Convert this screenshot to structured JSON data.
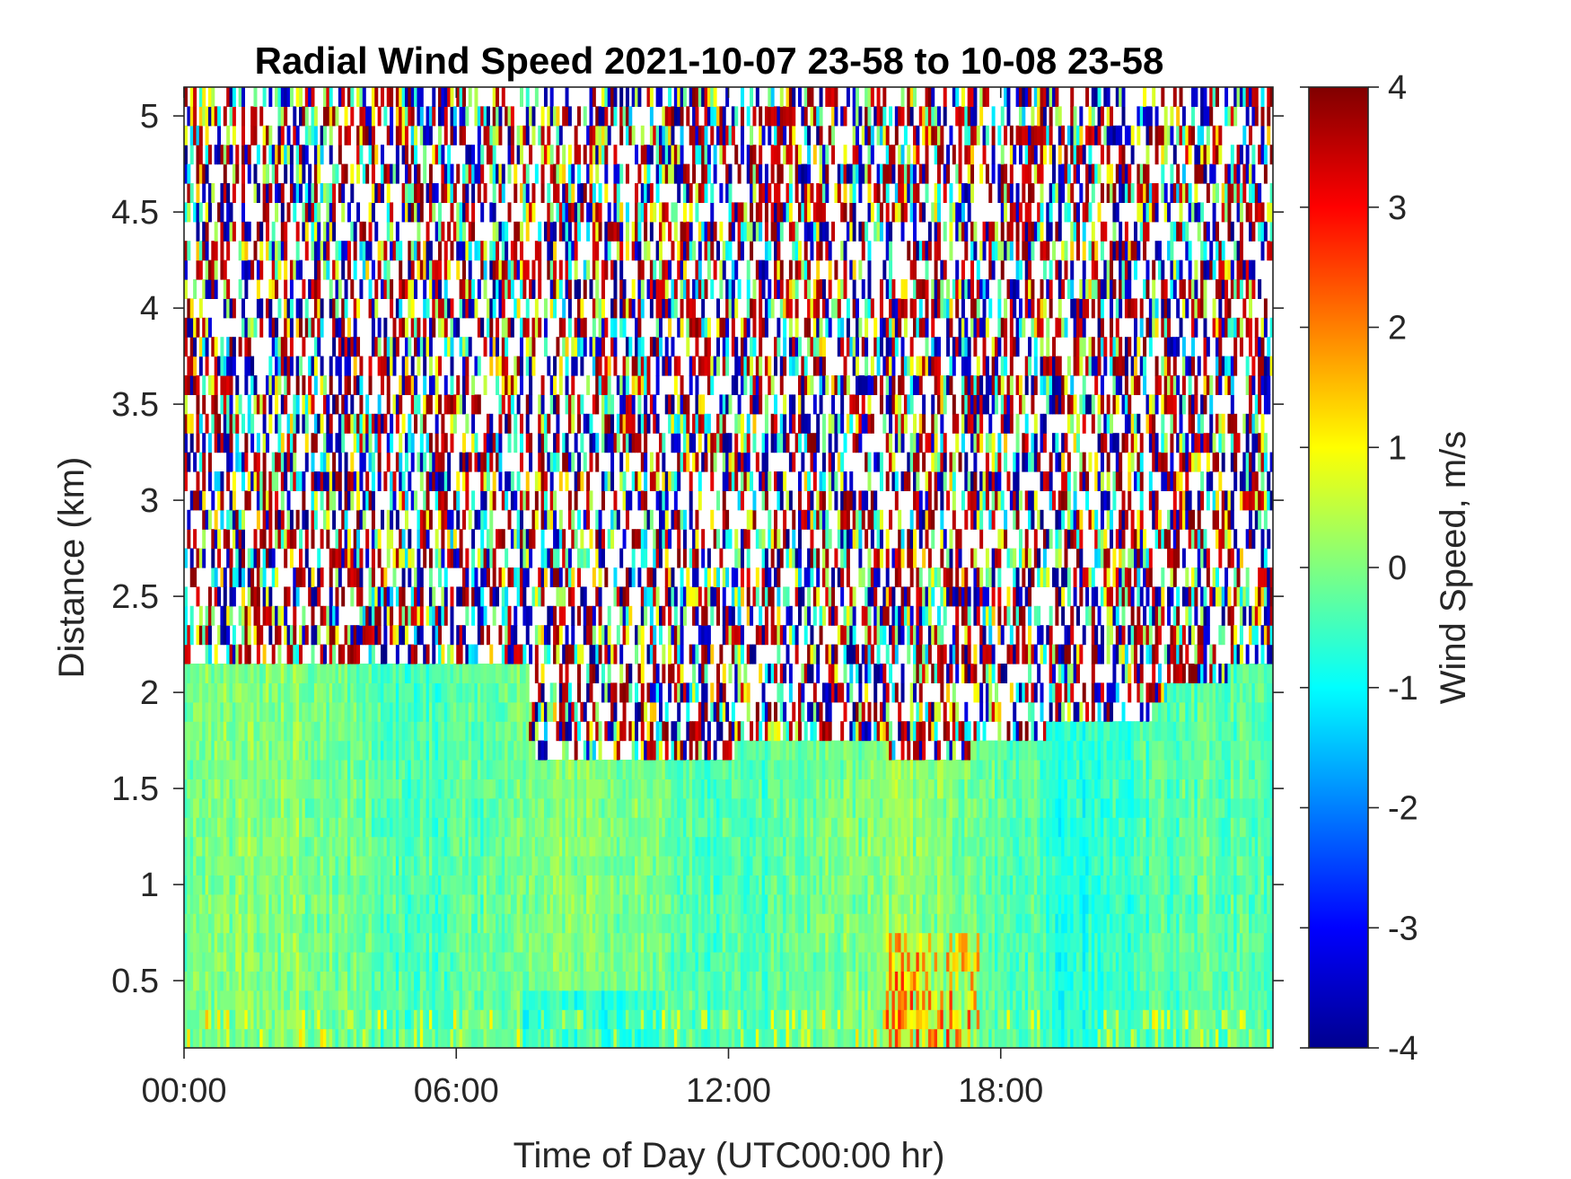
{
  "chart_data": {
    "type": "heatmap",
    "title": "Radial Wind Speed 2021-10-07 23-58 to 10-08 23-58",
    "xlabel": "Time of Day (UTC00:00 hr)",
    "ylabel": "Distance (km)",
    "x_ticks": [
      "00:00",
      "06:00",
      "12:00",
      "18:00"
    ],
    "x_range_hours": [
      0,
      24
    ],
    "y_ticks": [
      "0.5",
      "1",
      "1.5",
      "2",
      "2.5",
      "3",
      "3.5",
      "4",
      "4.5",
      "5"
    ],
    "y_range_km": [
      0.15,
      5.15
    ],
    "colorbar": {
      "label": "Wind Speed, m/s",
      "range": [
        -4,
        4
      ],
      "ticks": [
        "-4",
        "-3",
        "-2",
        "-1",
        "0",
        "1",
        "2",
        "3",
        "4"
      ],
      "colormap": "jet"
    },
    "valid_data_top_km": [
      {
        "t_hr": 0.0,
        "km": 2.15
      },
      {
        "t_hr": 7.6,
        "km": 2.15
      },
      {
        "t_hr": 7.6,
        "km": 1.75
      },
      {
        "t_hr": 7.9,
        "km": 1.65
      },
      {
        "t_hr": 10.4,
        "km": 1.65
      },
      {
        "t_hr": 12.0,
        "km": 1.65
      },
      {
        "t_hr": 12.2,
        "km": 1.75
      },
      {
        "t_hr": 15.5,
        "km": 1.75
      },
      {
        "t_hr": 15.6,
        "km": 1.65
      },
      {
        "t_hr": 17.3,
        "km": 1.65
      },
      {
        "t_hr": 17.3,
        "km": 1.75
      },
      {
        "t_hr": 19.0,
        "km": 1.75
      },
      {
        "t_hr": 19.0,
        "km": 1.85
      },
      {
        "t_hr": 21.3,
        "km": 1.85
      },
      {
        "t_hr": 21.3,
        "km": 1.95
      },
      {
        "t_hr": 22.0,
        "km": 2.05
      },
      {
        "t_hr": 24.0,
        "km": 2.15
      }
    ],
    "regions": [
      {
        "description": "valid returns below boundary",
        "typical_speed_ms": [
          -1.0,
          0.5
        ]
      },
      {
        "description": "noise above boundary",
        "typical_speed_ms": [
          -4,
          4
        ]
      },
      {
        "description": "positive streaks near surface",
        "t_hr": [
          15.5,
          17.5
        ],
        "km": [
          0.15,
          0.75
        ],
        "typical_speed_ms": [
          1,
          2.5
        ]
      },
      {
        "description": "negative near-surface band",
        "t_hr": [
          7.5,
          10.5
        ],
        "km": [
          0.15,
          0.45
        ],
        "typical_speed_ms": [
          -1.3,
          -0.6
        ]
      }
    ]
  }
}
